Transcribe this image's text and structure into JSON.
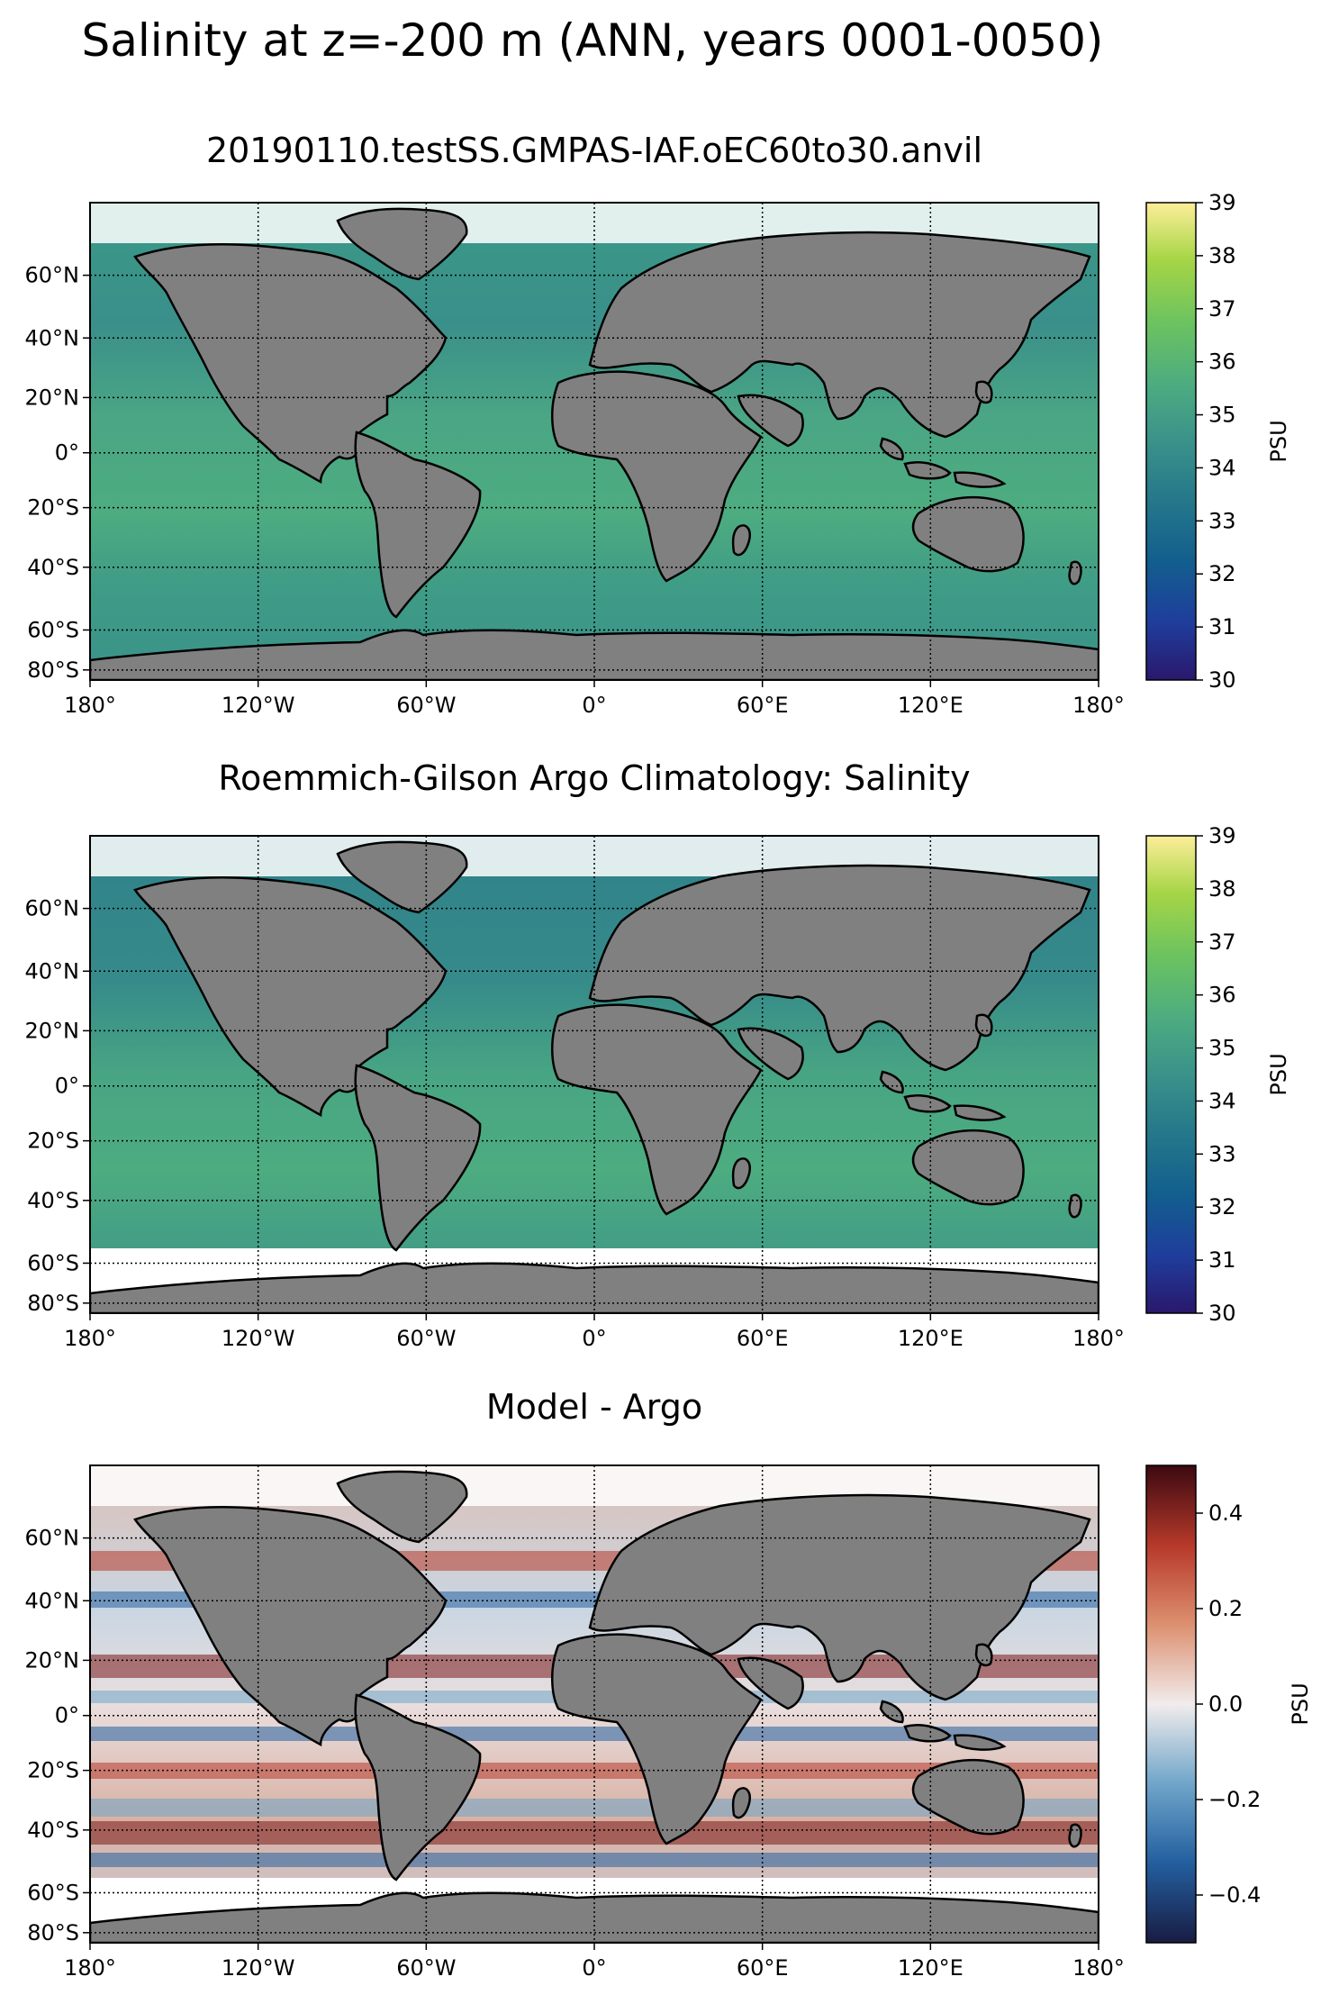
{
  "suptitle": "Salinity at z=-200 m (ANN, years 0001-0050)",
  "colors": {
    "land": "#808080",
    "nodata": "#ffffff",
    "coast": "#000000",
    "haline": [
      "#2a186c",
      "#1f3d9c",
      "#125f8e",
      "#26788a",
      "#3a928a",
      "#4dac80",
      "#6cc35f",
      "#a6d546",
      "#fdee99"
    ],
    "balance": [
      "#181c43",
      "#2460a0",
      "#6ea4c9",
      "#f1ecec",
      "#dc8e6e",
      "#b73a2b",
      "#3c0911"
    ]
  },
  "panels": [
    {
      "name": "model",
      "title": "20190110.testSS.GMPAS-IAF.oEC60to30.anvil",
      "colormap": "haline",
      "cbar_ticks": [
        "39",
        "38",
        "37",
        "36",
        "35",
        "34",
        "33",
        "32",
        "31",
        "30"
      ],
      "cbar_label": "PSU",
      "lat_ticks": [
        "60°N",
        "40°N",
        "20°N",
        "0°",
        "20°S",
        "40°S",
        "60°S",
        "80°S"
      ],
      "lon_ticks": [
        "180°",
        "120°W",
        "60°W",
        "0°",
        "60°E",
        "120°E",
        "180°"
      ]
    },
    {
      "name": "observations",
      "title": "Roemmich-Gilson Argo Climatology: Salinity",
      "colormap": "haline",
      "cbar_ticks": [
        "39",
        "38",
        "37",
        "36",
        "35",
        "34",
        "33",
        "32",
        "31",
        "30"
      ],
      "cbar_label": "PSU",
      "lat_ticks": [
        "60°N",
        "40°N",
        "20°N",
        "0°",
        "20°S",
        "40°S",
        "60°S",
        "80°S"
      ],
      "lon_ticks": [
        "180°",
        "120°W",
        "60°W",
        "0°",
        "60°E",
        "120°E",
        "180°"
      ]
    },
    {
      "name": "difference",
      "title": "Model - Argo",
      "colormap": "balance",
      "cbar_ticks": [
        "0.4",
        "0.2",
        "0.0",
        "−0.2",
        "−0.4"
      ],
      "cbar_label": "PSU",
      "lat_ticks": [
        "60°N",
        "40°N",
        "20°N",
        "0°",
        "20°S",
        "40°S",
        "60°S",
        "80°S"
      ],
      "lon_ticks": [
        "180°",
        "120°W",
        "60°W",
        "0°",
        "60°E",
        "120°E",
        "180°"
      ]
    }
  ]
}
